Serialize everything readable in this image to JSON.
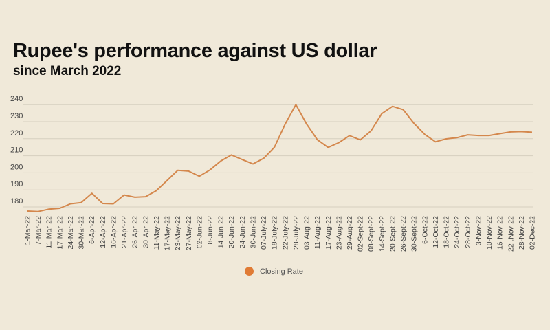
{
  "chart_data": {
    "type": "line",
    "title": "Rupee's performance against US dollar",
    "subtitle": "since March 2022",
    "xlabel": "",
    "ylabel": "",
    "ylim": [
      180,
      240
    ],
    "yticks": [
      180,
      190,
      200,
      210,
      220,
      230,
      240
    ],
    "grid": true,
    "legend_placement": "bottom-center",
    "categories": [
      "1-Mar-22",
      "7-Mar-22",
      "11-Mar-22",
      "17-Mar-22",
      "24-Mar-22",
      "30-Mar-22",
      "6-Apr-22",
      "12-Apr-22",
      "16-Apr-22",
      "21-Apr-22",
      "26-Apr-22",
      "30-Apr-22",
      "11-May-22",
      "17-May-22",
      "23-May-22",
      "27-May-22",
      "02-Jun-22",
      "8-Jun-22",
      "14-Jun-22",
      "20-Jun-22",
      "24-Jun-22",
      "30-Jun-22",
      "07-July-22",
      "18-July-22",
      "22-July-22",
      "28-July-22",
      "03-Aug-22",
      "11-Aug-22",
      "17-Aug-22",
      "23-Aug-22",
      "29-Aug-22",
      "02-Sept-22",
      "08-Sept-22",
      "14-Sept-22",
      "20-Sept-22",
      "26-Sept-22",
      "30-Sept-22",
      "6-Oct-22",
      "12-Oct-22",
      "18-Oct-22",
      "24-Oct-22",
      "28-Oct-22",
      "3-Nov-22",
      "10-Nov-22",
      "16-Nov-22",
      "22-.Nov-22",
      "28-Nov-22",
      "02-Dec-22"
    ],
    "series": [
      {
        "name": "Closing Rate",
        "color": "#d4874c",
        "legend_color": "#e07b35",
        "values": [
          177.6,
          177.3,
          178.7,
          179.2,
          181.8,
          182.5,
          188.0,
          182.0,
          181.8,
          187.0,
          185.7,
          186.0,
          189.5,
          195.5,
          201.5,
          201.0,
          198.0,
          201.7,
          206.9,
          210.5,
          207.8,
          205.2,
          208.5,
          215.0,
          228.6,
          240.0,
          228.6,
          219.4,
          214.9,
          217.7,
          221.8,
          219.3,
          224.6,
          234.7,
          239.0,
          237.0,
          229.0,
          222.6,
          218.2,
          219.9,
          220.6,
          222.3,
          221.9,
          221.9,
          223.0,
          224.0,
          224.2,
          223.8
        ]
      }
    ]
  },
  "colors": {
    "background": "#f0e9d9",
    "grid": "#d6cfbf",
    "text": "#444444"
  }
}
